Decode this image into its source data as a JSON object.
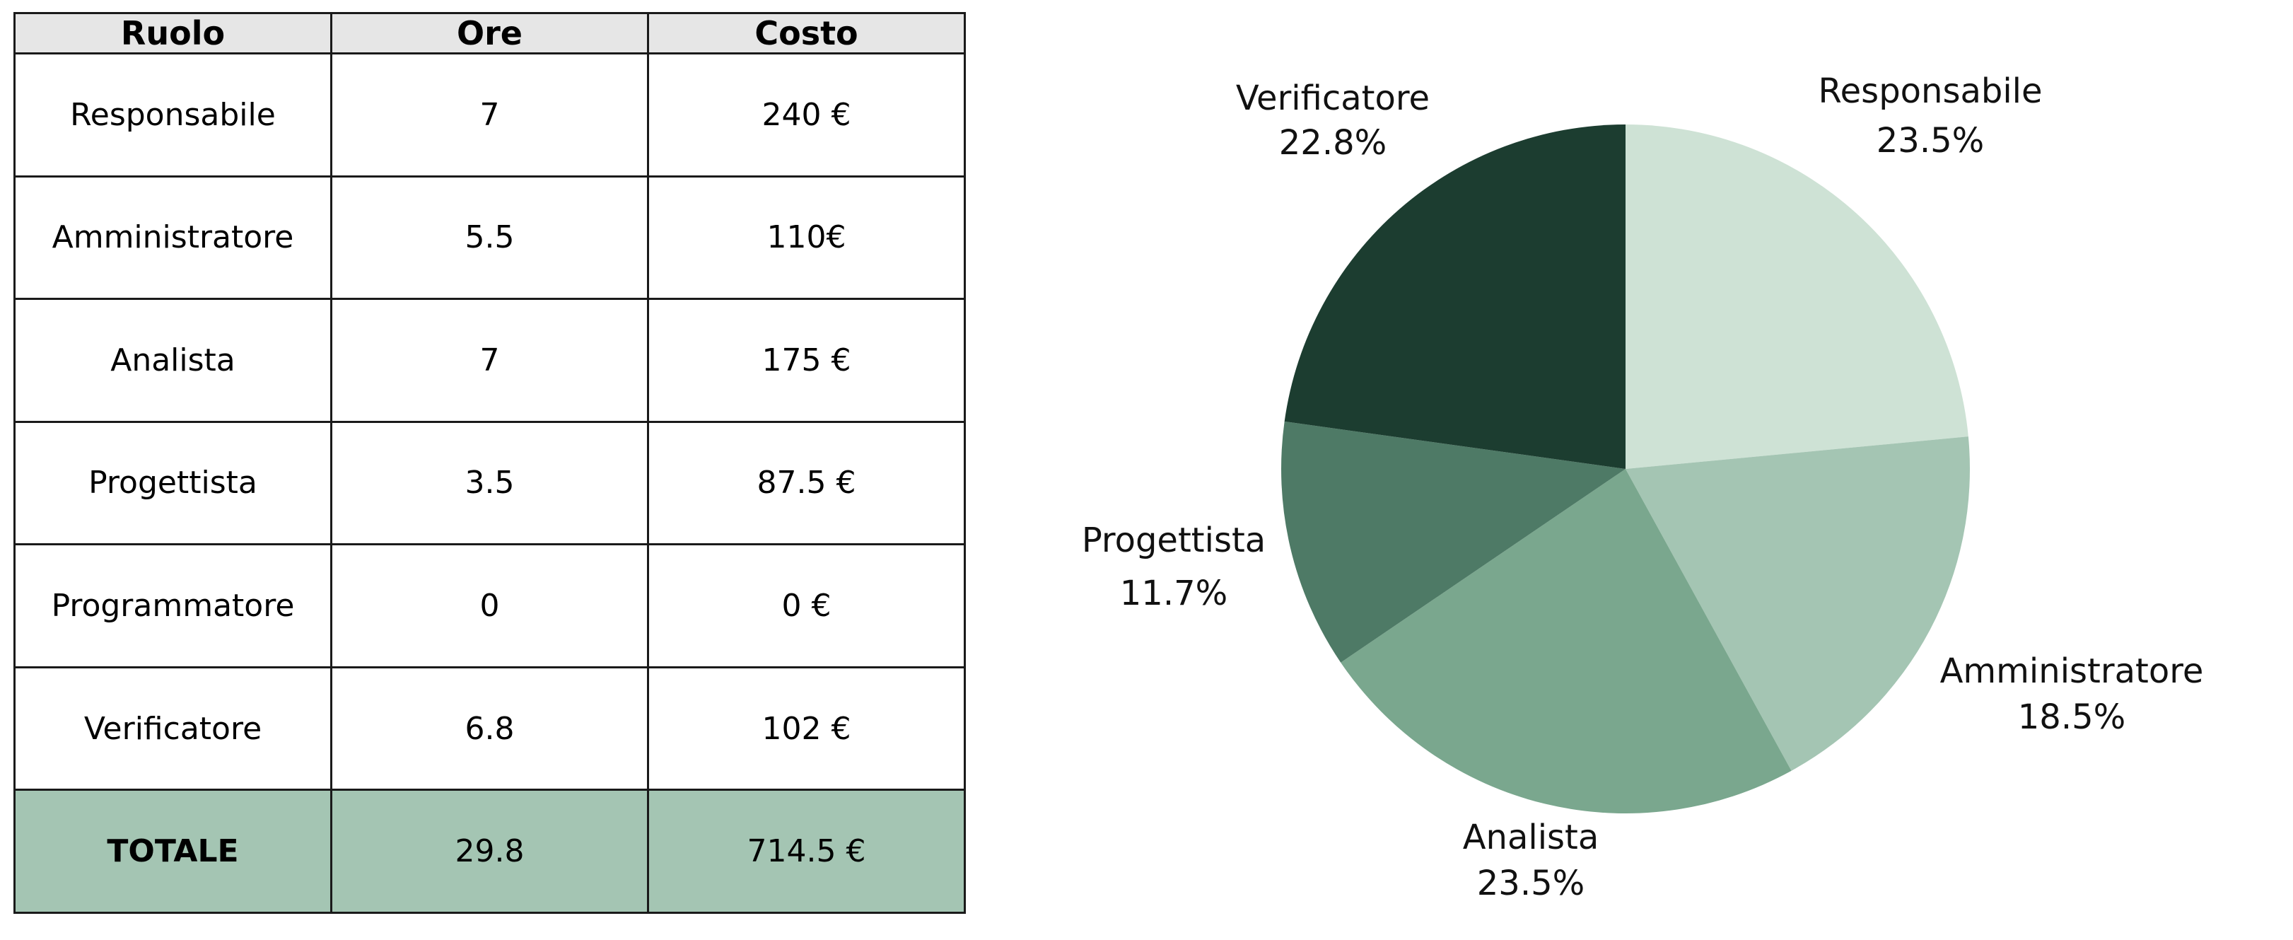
{
  "table": {
    "headers": [
      "Ruolo",
      "Ore",
      "Costo"
    ],
    "rows": [
      {
        "ruolo": "Responsabile",
        "ore": "7",
        "costo": "240 €"
      },
      {
        "ruolo": "Amministratore",
        "ore": "5.5",
        "costo": "110€"
      },
      {
        "ruolo": "Analista",
        "ore": "7",
        "costo": "175 €"
      },
      {
        "ruolo": "Progettista",
        "ore": "3.5",
        "costo": "87.5 €"
      },
      {
        "ruolo": "Programmatore",
        "ore": "0",
        "costo": "0 €"
      },
      {
        "ruolo": "Verificatore",
        "ore": "6.8",
        "costo": "102 €"
      }
    ],
    "total": {
      "ruolo": "TOTALE",
      "ore": "29.8",
      "costo": "714.5 €"
    },
    "colors": {
      "header_bg": "#e6e6e6",
      "total_bg": "#a4c5b3",
      "border": "#1a1a1a"
    }
  },
  "chart_data": {
    "type": "pie",
    "title": "",
    "start_angle_deg": 90,
    "direction": "clockwise",
    "slices": [
      {
        "label": "Responsabile",
        "value": 23.5,
        "value_label": "23.5%",
        "color": "#cee2d5"
      },
      {
        "label": "Amministratore",
        "value": 18.5,
        "value_label": "18.5%",
        "color": "#a4c5b3"
      },
      {
        "label": "Analista",
        "value": 23.5,
        "value_label": "23.5%",
        "color": "#7aa78e"
      },
      {
        "label": "Progettista",
        "value": 11.7,
        "value_label": "11.7%",
        "color": "#4e7a66"
      },
      {
        "label": "Verificatore",
        "value": 22.8,
        "value_label": "22.8%",
        "color": "#1c3d30"
      }
    ],
    "legend": "none"
  }
}
